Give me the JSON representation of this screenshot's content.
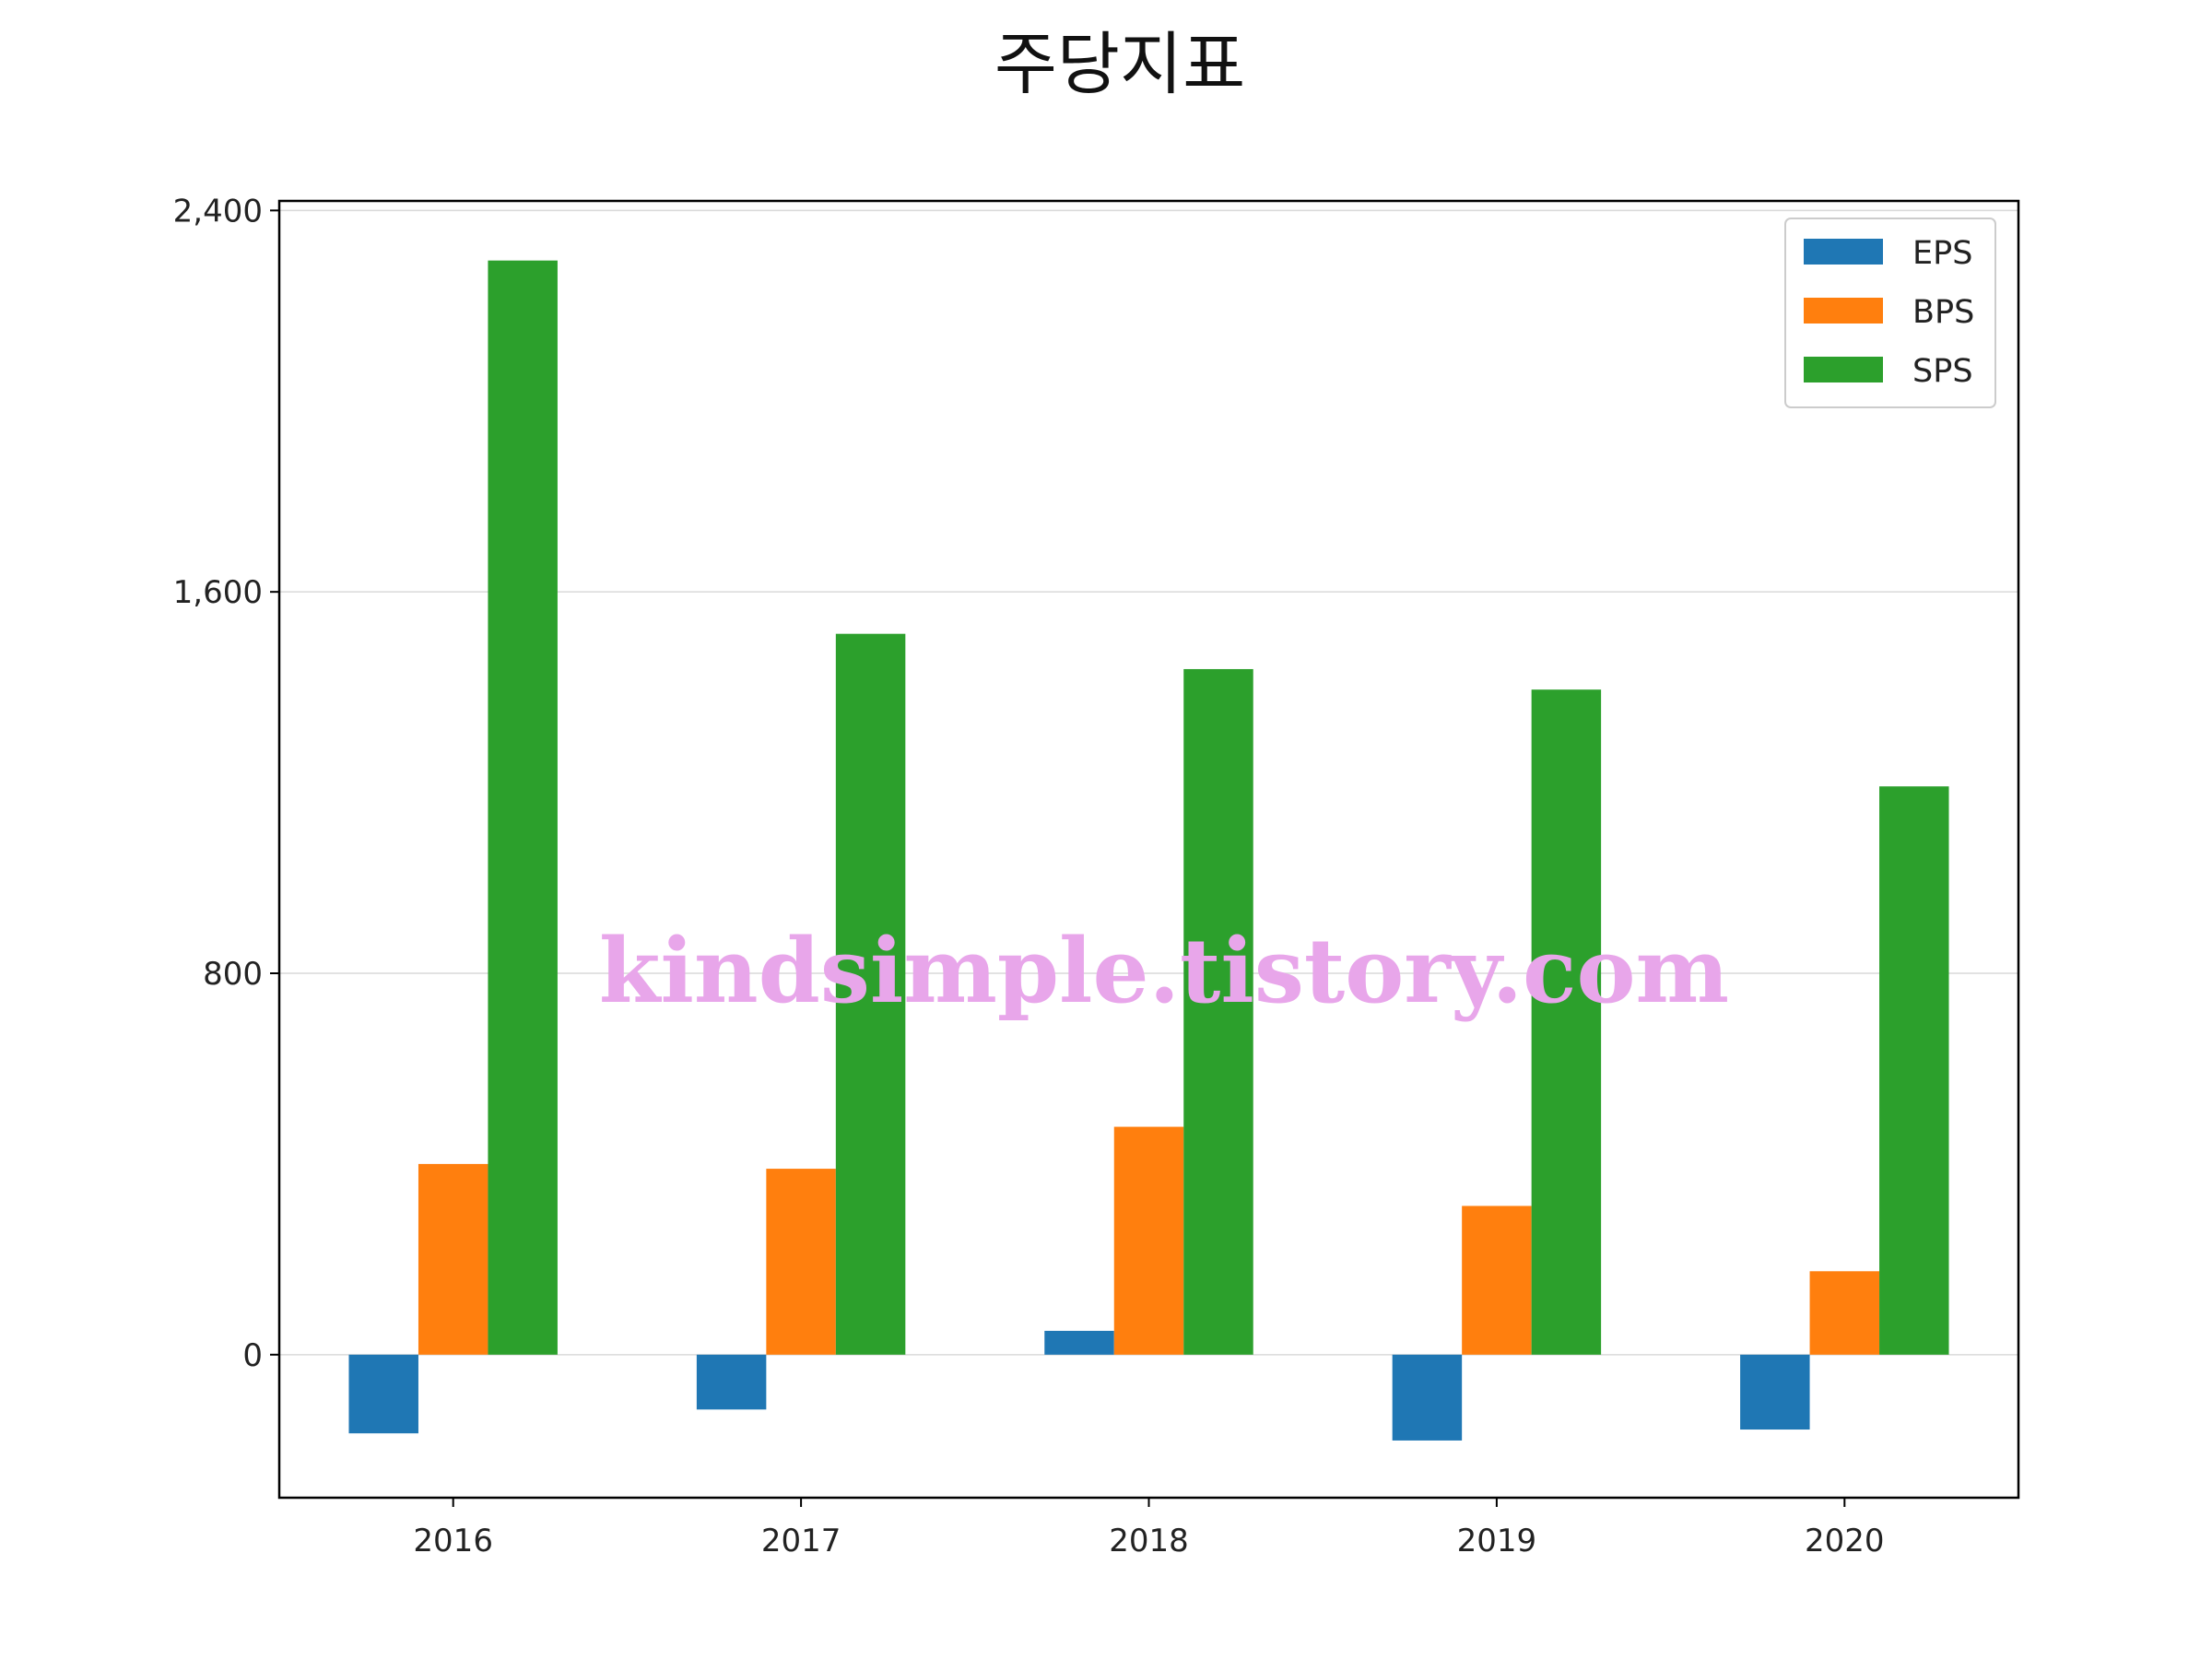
{
  "chart_data": {
    "type": "bar",
    "title": "주당지표",
    "xlabel": "",
    "ylabel": "",
    "categories": [
      "2016",
      "2017",
      "2018",
      "2019",
      "2020"
    ],
    "series": [
      {
        "name": "EPS",
        "color": "#1f77b4",
        "values": [
          -165,
          -115,
          50,
          -180,
          -157
        ]
      },
      {
        "name": "BPS",
        "color": "#ff7f0e",
        "values": [
          400,
          390,
          478,
          312,
          175
        ]
      },
      {
        "name": "SPS",
        "color": "#2ca02c",
        "values": [
          2295,
          1512,
          1438,
          1395,
          1192
        ]
      }
    ],
    "ylim": [
      -300,
      2420
    ],
    "yticks": [
      0,
      800,
      1600,
      2400
    ],
    "ytick_labels": [
      "0",
      "800",
      "1,600",
      "2,400"
    ],
    "grid": "y",
    "legend_position": "top-right"
  },
  "watermark": "kindsimple.tistory.com"
}
